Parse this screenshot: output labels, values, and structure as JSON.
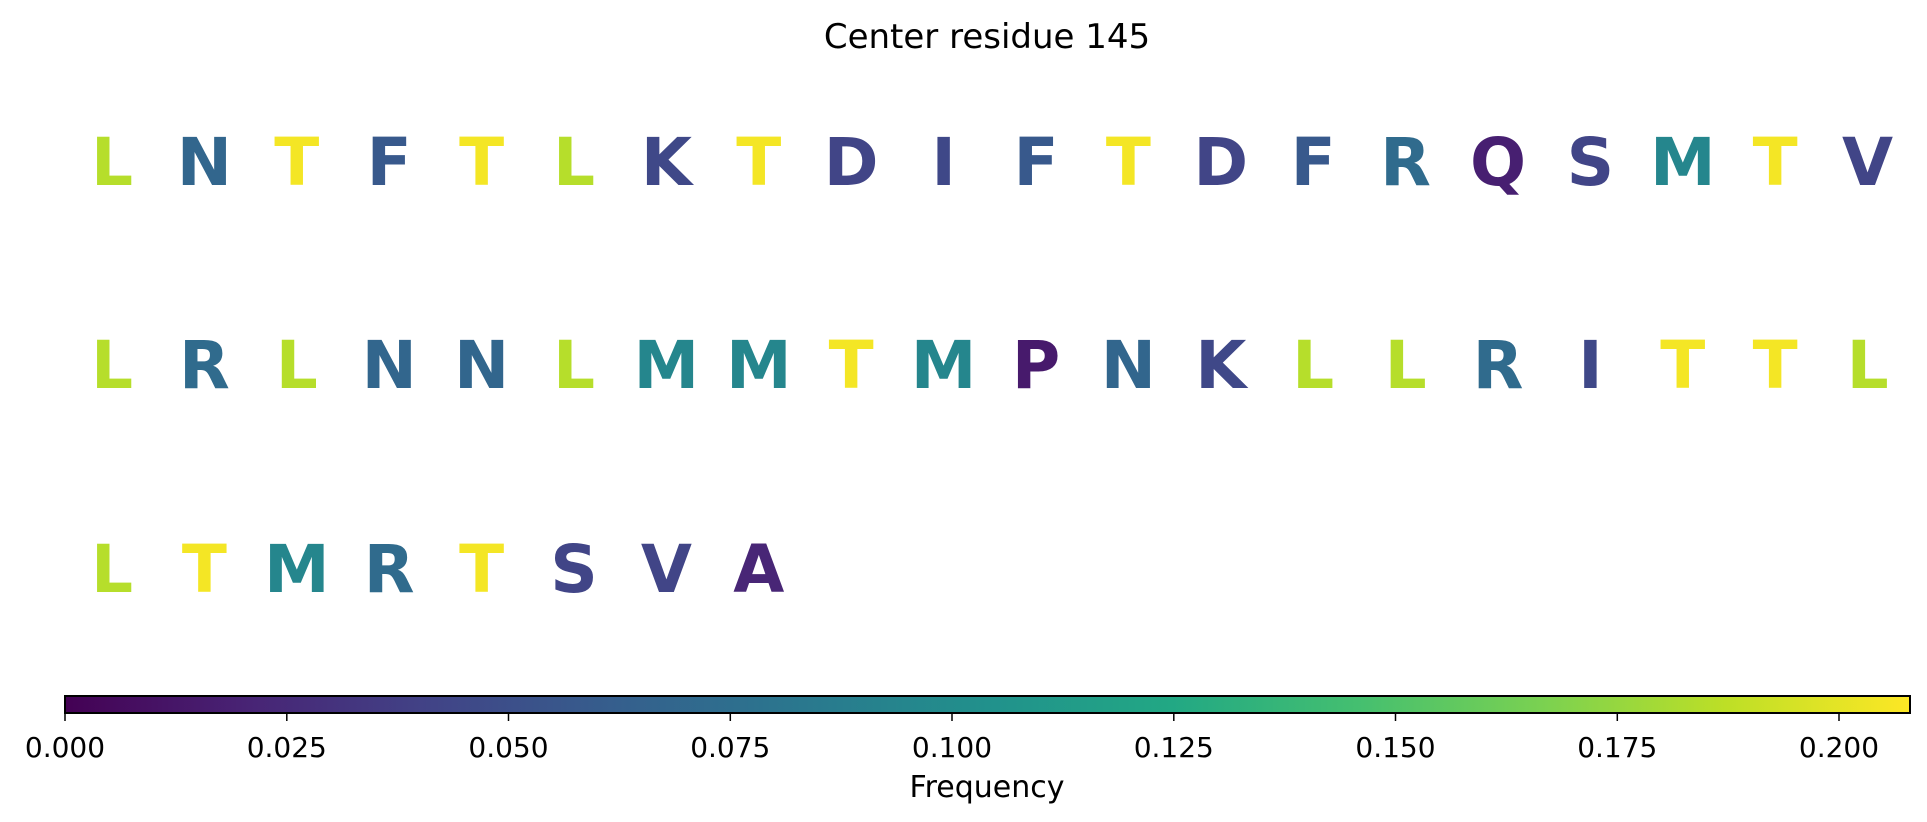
{
  "chart_data": {
    "type": "table",
    "title": "Center residue 145",
    "columns_per_row": 20,
    "residues": [
      {
        "letter": "L",
        "frequency": 0.185
      },
      {
        "letter": "N",
        "frequency": 0.068
      },
      {
        "letter": "T",
        "frequency": 0.205
      },
      {
        "letter": "F",
        "frequency": 0.058
      },
      {
        "letter": "T",
        "frequency": 0.205
      },
      {
        "letter": "L",
        "frequency": 0.185
      },
      {
        "letter": "K",
        "frequency": 0.045
      },
      {
        "letter": "T",
        "frequency": 0.205
      },
      {
        "letter": "D",
        "frequency": 0.042
      },
      {
        "letter": "I",
        "frequency": 0.045
      },
      {
        "letter": "F",
        "frequency": 0.058
      },
      {
        "letter": "T",
        "frequency": 0.205
      },
      {
        "letter": "D",
        "frequency": 0.042
      },
      {
        "letter": "F",
        "frequency": 0.058
      },
      {
        "letter": "R",
        "frequency": 0.072
      },
      {
        "letter": "Q",
        "frequency": 0.018
      },
      {
        "letter": "S",
        "frequency": 0.042
      },
      {
        "letter": "M",
        "frequency": 0.095
      },
      {
        "letter": "T",
        "frequency": 0.205
      },
      {
        "letter": "V",
        "frequency": 0.042
      },
      {
        "letter": "L",
        "frequency": 0.185
      },
      {
        "letter": "R",
        "frequency": 0.072
      },
      {
        "letter": "L",
        "frequency": 0.185
      },
      {
        "letter": "N",
        "frequency": 0.068
      },
      {
        "letter": "N",
        "frequency": 0.068
      },
      {
        "letter": "L",
        "frequency": 0.185
      },
      {
        "letter": "M",
        "frequency": 0.095
      },
      {
        "letter": "M",
        "frequency": 0.095
      },
      {
        "letter": "T",
        "frequency": 0.205
      },
      {
        "letter": "M",
        "frequency": 0.095
      },
      {
        "letter": "P",
        "frequency": 0.015
      },
      {
        "letter": "N",
        "frequency": 0.068
      },
      {
        "letter": "K",
        "frequency": 0.045
      },
      {
        "letter": "L",
        "frequency": 0.185
      },
      {
        "letter": "L",
        "frequency": 0.185
      },
      {
        "letter": "R",
        "frequency": 0.072
      },
      {
        "letter": "I",
        "frequency": 0.045
      },
      {
        "letter": "T",
        "frequency": 0.205
      },
      {
        "letter": "T",
        "frequency": 0.205
      },
      {
        "letter": "L",
        "frequency": 0.185
      },
      {
        "letter": "L",
        "frequency": 0.185
      },
      {
        "letter": "T",
        "frequency": 0.205
      },
      {
        "letter": "M",
        "frequency": 0.095
      },
      {
        "letter": "R",
        "frequency": 0.072
      },
      {
        "letter": "T",
        "frequency": 0.205
      },
      {
        "letter": "S",
        "frequency": 0.042
      },
      {
        "letter": "V",
        "frequency": 0.042
      },
      {
        "letter": "A",
        "frequency": 0.022
      }
    ],
    "colorbar": {
      "colormap": "viridis",
      "range": [
        0,
        0.208
      ],
      "ticks": [
        0,
        0.025,
        0.05,
        0.075,
        0.1,
        0.125,
        0.15,
        0.175,
        0.2
      ],
      "tick_labels": [
        "0.000",
        "0.025",
        "0.050",
        "0.075",
        "0.100",
        "0.125",
        "0.150",
        "0.175",
        "0.200"
      ],
      "label": "Frequency",
      "orientation": "horizontal",
      "position": "bottom"
    }
  }
}
